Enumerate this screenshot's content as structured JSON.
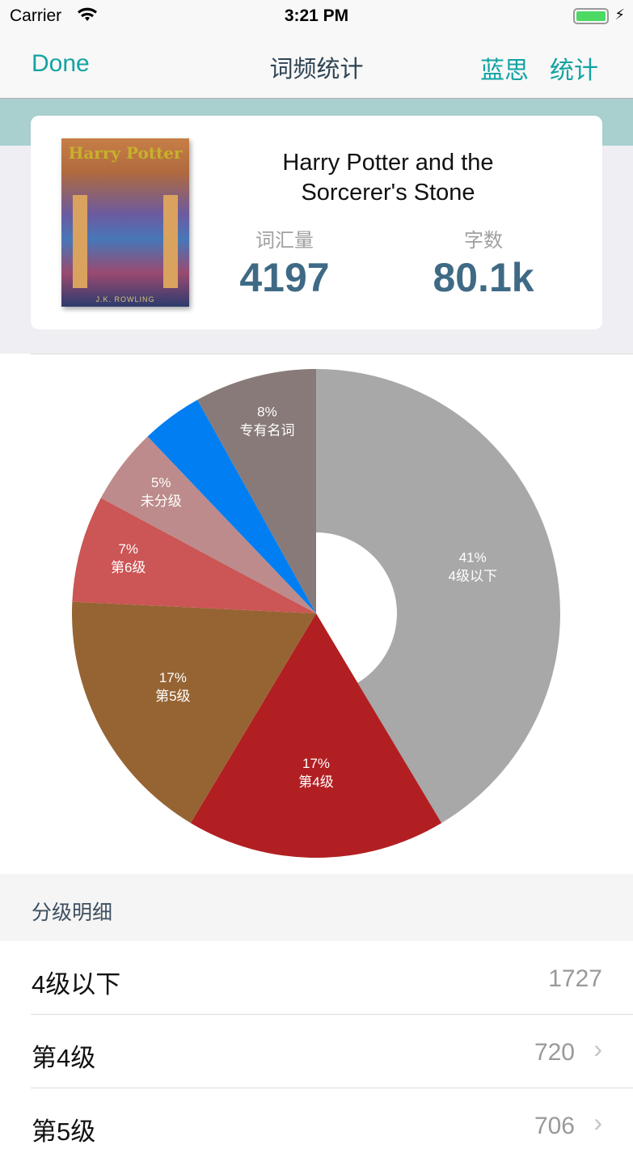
{
  "status_bar": {
    "carrier": "Carrier",
    "time": "3:21 PM"
  },
  "nav": {
    "done": "Done",
    "title": "词频统计",
    "right1": "蓝思",
    "right2": "统计"
  },
  "book": {
    "cover_title": "Harry Potter",
    "cover_author": "J.K. ROWLING",
    "title_line1": "Harry Potter and the",
    "title_line2": "Sorcerer's Stone",
    "vocab_label": "词汇量",
    "vocab_value": "4197",
    "words_label": "字数",
    "words_value": "80.1k"
  },
  "chart_data": {
    "type": "pie",
    "donut": true,
    "slices": [
      {
        "label": "4级以下",
        "percent": 41,
        "display": "41%",
        "color": "#a8a8a8"
      },
      {
        "label": "第4级",
        "percent": 17,
        "display": "17%",
        "color": "#b21f22"
      },
      {
        "label": "第5级",
        "percent": 17,
        "display": "17%",
        "color": "#966433"
      },
      {
        "label": "第6级",
        "percent": 7,
        "display": "7%",
        "color": "#cc5555"
      },
      {
        "label": "未分级",
        "percent": 5,
        "display": "5%",
        "color": "#bd8b8b"
      },
      {
        "label": "",
        "percent": 4,
        "display": "",
        "color": "#007ef2"
      },
      {
        "label": "专有名词",
        "percent": 8,
        "display": "8%",
        "color": "#887a78"
      }
    ]
  },
  "section": {
    "title": "分级明细"
  },
  "rows": [
    {
      "name": "4级以下",
      "count": "1727",
      "chevron": false
    },
    {
      "name": "第4级",
      "count": "720",
      "chevron": true
    },
    {
      "name": "第5级",
      "count": "706",
      "chevron": true
    }
  ]
}
